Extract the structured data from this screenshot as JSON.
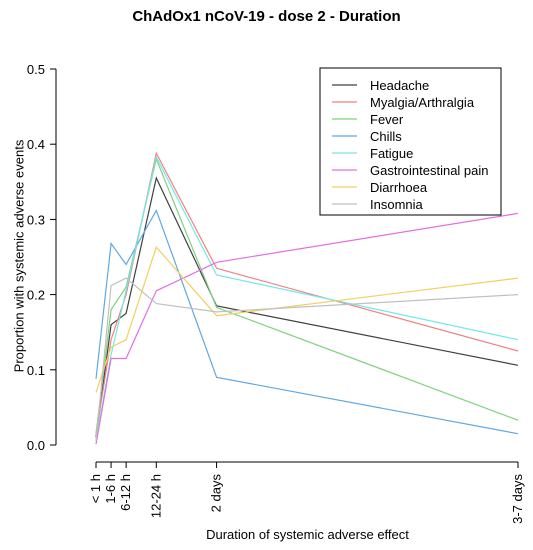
{
  "chart_data": {
    "type": "line",
    "title": "ChAdOx1 nCoV-19 - dose 2 - Duration",
    "xlabel": "Duration of systemic adverse effect",
    "ylabel": "Proportion with systemic adverse events",
    "categories": [
      "< 1 h",
      "1-6 h",
      "6-12 h",
      "12-24 h",
      "2 days",
      "3-7 days"
    ],
    "x_positions_hours": [
      1,
      2,
      3,
      5,
      9,
      29
    ],
    "ylim": [
      0,
      0.5
    ],
    "yticks": [
      "0.0",
      "0.1",
      "0.2",
      "0.3",
      "0.4",
      "0.5"
    ],
    "grid": false,
    "legend_position": "top-right",
    "series": [
      {
        "name": "Headache",
        "color": "#404040",
        "values": [
          0.01,
          0.16,
          0.175,
          0.355,
          0.185,
          0.106
        ]
      },
      {
        "name": "Myalgia/Arthralgia",
        "color": "#f08080",
        "values": [
          0.015,
          0.14,
          0.2,
          0.388,
          0.235,
          0.125
        ]
      },
      {
        "name": "Fever",
        "color": "#80d080",
        "values": [
          0.015,
          0.18,
          0.21,
          0.38,
          0.183,
          0.033
        ]
      },
      {
        "name": "Chills",
        "color": "#60a8e0",
        "values": [
          0.088,
          0.268,
          0.24,
          0.312,
          0.09,
          0.015
        ]
      },
      {
        "name": "Fatigue",
        "color": "#70e8e8",
        "values": [
          0.005,
          0.12,
          0.205,
          0.383,
          0.226,
          0.14
        ]
      },
      {
        "name": "Gastrointestinal pain",
        "color": "#e070e0",
        "values": [
          0.001,
          0.115,
          0.115,
          0.205,
          0.243,
          0.308
        ]
      },
      {
        "name": "Diarrhoea",
        "color": "#f0d060",
        "values": [
          0.07,
          0.13,
          0.14,
          0.263,
          0.172,
          0.222
        ]
      },
      {
        "name": "Insomnia",
        "color": "#c0c0c0",
        "values": [
          0.005,
          0.212,
          0.222,
          0.188,
          0.177,
          0.2
        ]
      }
    ]
  }
}
